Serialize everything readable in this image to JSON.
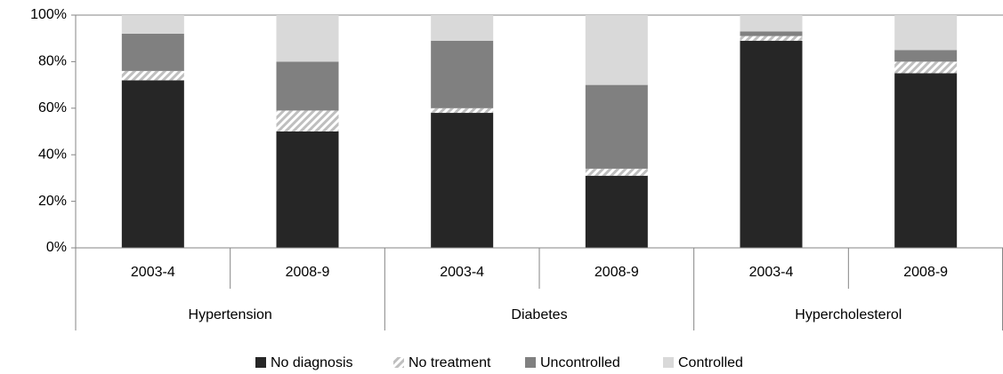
{
  "chart_data": {
    "type": "stacked_bar",
    "categories": [
      "2003-4",
      "2008-9",
      "2003-4",
      "2008-9",
      "2003-4",
      "2008-9"
    ],
    "groups": [
      "Hypertension",
      "Diabetes",
      "Hypercholesterol"
    ],
    "series": [
      {
        "name": "No diagnosis",
        "color": "#262626",
        "values": [
          72,
          50,
          58,
          31,
          89,
          75
        ]
      },
      {
        "name": "No treatment",
        "color": "#bfbfbf",
        "pattern": "hatch",
        "values": [
          4,
          9,
          2,
          3,
          2,
          5
        ]
      },
      {
        "name": "Uncontrolled",
        "color": "#808080",
        "values": [
          16,
          21,
          29,
          36,
          2,
          5
        ]
      },
      {
        "name": "Controlled",
        "color": "#d9d9d9",
        "values": [
          8,
          20,
          11,
          30,
          7,
          15
        ]
      }
    ],
    "ylim": [
      0,
      100
    ],
    "yticks": [
      {
        "value": 0,
        "label": "0%"
      },
      {
        "value": 20,
        "label": "20%"
      },
      {
        "value": 40,
        "label": "40%"
      },
      {
        "value": 60,
        "label": "60%"
      },
      {
        "value": 80,
        "label": "80%"
      },
      {
        "value": 100,
        "label": "100%"
      }
    ],
    "legend": "bottom"
  }
}
